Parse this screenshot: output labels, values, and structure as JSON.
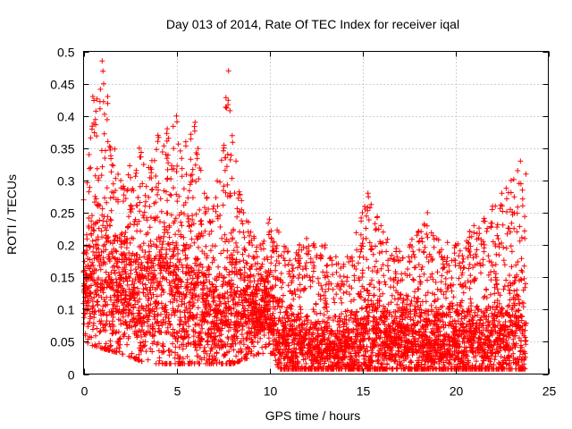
{
  "chart_data": {
    "type": "scatter",
    "title": "Day 013 of 2014, Rate Of TEC Index for receiver iqal",
    "xlabel": "GPS time / hours",
    "ylabel": "ROTI / TECUs",
    "xlim": [
      0,
      25
    ],
    "ylim": [
      0,
      0.5
    ],
    "xticks": [
      0,
      5,
      10,
      15,
      20,
      25
    ],
    "xtick_labels": [
      "0",
      "5",
      "10",
      "15",
      "20",
      "25"
    ],
    "yticks": [
      0,
      0.05,
      0.1,
      0.15,
      0.2,
      0.25,
      0.3,
      0.35,
      0.4,
      0.45,
      0.5
    ],
    "ytick_labels": [
      "0",
      "0.05",
      "0.1",
      "0.15",
      "0.2",
      "0.25",
      "0.3",
      "0.35",
      "0.4",
      "0.45",
      "0.5"
    ],
    "grid": true,
    "legend": "none",
    "marker": "plus",
    "series_color": "#ff0000",
    "envelope_upper": [
      [
        0,
        0.27
      ],
      [
        0.3,
        0.34
      ],
      [
        0.5,
        0.43
      ],
      [
        1.0,
        0.485
      ],
      [
        1.3,
        0.43
      ],
      [
        2.0,
        0.3
      ],
      [
        3.0,
        0.35
      ],
      [
        3.5,
        0.32
      ],
      [
        4.0,
        0.37
      ],
      [
        4.5,
        0.38
      ],
      [
        5.0,
        0.4
      ],
      [
        5.5,
        0.36
      ],
      [
        6.0,
        0.39
      ],
      [
        6.5,
        0.28
      ],
      [
        7.0,
        0.26
      ],
      [
        7.8,
        0.47
      ],
      [
        8.2,
        0.33
      ],
      [
        8.6,
        0.25
      ],
      [
        9.5,
        0.2
      ],
      [
        10.0,
        0.24
      ],
      [
        10.5,
        0.22
      ],
      [
        11.0,
        0.19
      ],
      [
        12.0,
        0.21
      ],
      [
        13.0,
        0.2
      ],
      [
        14.0,
        0.17
      ],
      [
        15.0,
        0.25
      ],
      [
        15.3,
        0.28
      ],
      [
        16.0,
        0.23
      ],
      [
        17.0,
        0.19
      ],
      [
        18.0,
        0.22
      ],
      [
        18.5,
        0.25
      ],
      [
        19.0,
        0.21
      ],
      [
        20.0,
        0.2
      ],
      [
        21.0,
        0.23
      ],
      [
        22.0,
        0.26
      ],
      [
        22.5,
        0.28
      ],
      [
        23.0,
        0.3
      ],
      [
        23.5,
        0.33
      ],
      [
        23.8,
        0.31
      ]
    ],
    "envelope_lower": [
      [
        0,
        0.06
      ],
      [
        2.0,
        0.04
      ],
      [
        3.5,
        0.02
      ],
      [
        5.0,
        0.02
      ],
      [
        6.5,
        0.02
      ],
      [
        8.0,
        0.02
      ],
      [
        9.5,
        0.04
      ],
      [
        10.2,
        0.04
      ],
      [
        10.5,
        0.01
      ],
      [
        13.0,
        0.01
      ],
      [
        15.0,
        0.01
      ],
      [
        20.0,
        0.01
      ],
      [
        23.8,
        0.01
      ]
    ],
    "typical_level": [
      [
        0,
        0.14
      ],
      [
        2.0,
        0.12
      ],
      [
        4.0,
        0.13
      ],
      [
        5.0,
        0.12
      ],
      [
        6.0,
        0.1
      ],
      [
        7.0,
        0.08
      ],
      [
        8.0,
        0.09
      ],
      [
        9.0,
        0.1
      ],
      [
        10.0,
        0.1
      ],
      [
        10.5,
        0.05
      ],
      [
        12.0,
        0.04
      ],
      [
        14.0,
        0.035
      ],
      [
        15.0,
        0.05
      ],
      [
        16.0,
        0.05
      ],
      [
        18.0,
        0.05
      ],
      [
        20.0,
        0.045
      ],
      [
        22.0,
        0.05
      ],
      [
        23.0,
        0.06
      ],
      [
        23.8,
        0.07
      ]
    ],
    "x_end_hours": 23.8,
    "sample_step_hours": 0.0125
  }
}
